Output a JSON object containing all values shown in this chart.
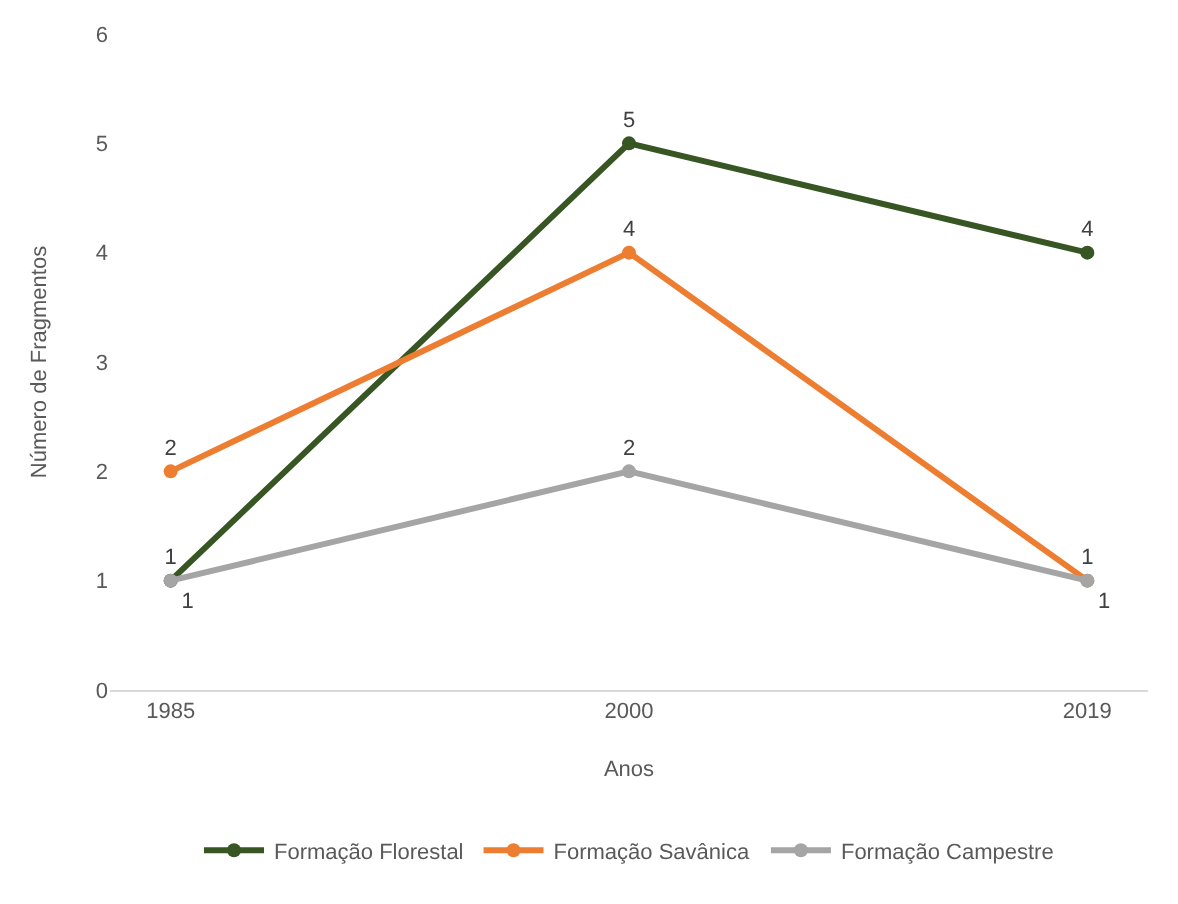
{
  "chart_data": {
    "type": "line",
    "xlabel": "Anos",
    "ylabel": "Número de Fragmentos",
    "categories": [
      "1985",
      "2000",
      "2019"
    ],
    "series": [
      {
        "name": "Formação Florestal",
        "color": "#375623",
        "values": [
          1,
          5,
          4
        ]
      },
      {
        "name": "Formação Savânica",
        "color": "#ed7d31",
        "values": [
          2,
          4,
          1
        ]
      },
      {
        "name": "Formação Campestre",
        "color": "#a5a5a5",
        "values": [
          1,
          2,
          1
        ]
      }
    ],
    "ylim": [
      0,
      6
    ],
    "yticks": [
      0,
      1,
      2,
      3,
      4,
      5,
      6
    ],
    "grid": false,
    "legend": "bottom",
    "marker": "circle",
    "line_style": "solid",
    "data_labels": true
  }
}
